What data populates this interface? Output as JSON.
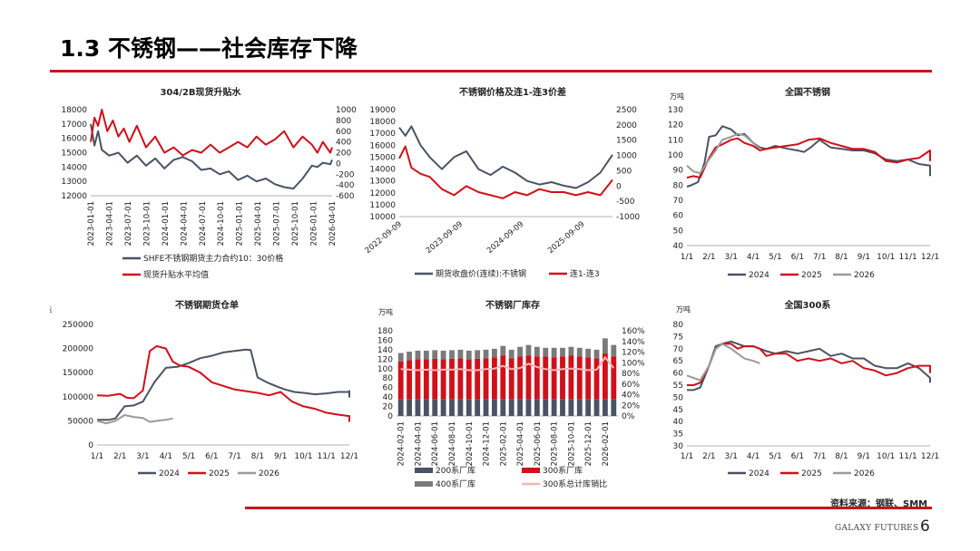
{
  "page": {
    "title": "1.3 不锈钢——社会库存下降",
    "source": "资料来源：钢联、SMM",
    "footer_brand": "GALAXY FUTURES",
    "page_number": "6"
  },
  "colors": {
    "red": "#d0101a",
    "gray": "#4a5363",
    "lightgray": "#9a9a9a",
    "pink": "#f4b6b8",
    "darkgray": "#7a7a7a"
  },
  "chart_data": [
    {
      "id": "c1",
      "type": "line",
      "title": "304/2B现货升贴水",
      "y_left": {
        "min": 12000,
        "max": 18000,
        "ticks": [
          "18000",
          "17000",
          "16000",
          "15000",
          "14000",
          "13000",
          "12000"
        ]
      },
      "y_right": {
        "min": -600,
        "max": 1000,
        "ticks": [
          "1000",
          "800",
          "600",
          "400",
          "200",
          "0",
          "-200",
          "-400",
          "-600"
        ]
      },
      "x_ticks": [
        "2023-01-01",
        "2023-04-01",
        "2023-07-01",
        "2023-10-01",
        "2024-01-01",
        "2024-04-01",
        "2024-07-01",
        "2024-10-01",
        "2025-01-01",
        "2025-04-01",
        "2025-07-01",
        "2025-10-01",
        "2026-01-01",
        "2026-04-01"
      ],
      "series": [
        {
          "name": "SHFE不锈钢期货主力合约10：30价格",
          "axis": "left",
          "color": "gray",
          "x": [
            0,
            0.2,
            0.4,
            0.6,
            1,
            1.5,
            2,
            2.5,
            3,
            3.5,
            4,
            4.5,
            5,
            5.5,
            6,
            6.5,
            7,
            7.5,
            8,
            8.5,
            9,
            9.5,
            10,
            10.5,
            11,
            11.5,
            12,
            12.3,
            12.6,
            13,
            13.1
          ],
          "values": [
            17000,
            15500,
            16500,
            15200,
            14800,
            15000,
            14300,
            14800,
            14100,
            14600,
            13900,
            14500,
            14700,
            14400,
            13800,
            13900,
            13500,
            13700,
            13100,
            13400,
            13000,
            13200,
            12800,
            12600,
            12500,
            13200,
            14100,
            14000,
            14300,
            14200,
            14500
          ]
        },
        {
          "name": "现货升贴水平均值",
          "axis": "right",
          "color": "red",
          "x": [
            0,
            0.2,
            0.4,
            0.6,
            0.9,
            1.2,
            1.5,
            1.8,
            2.1,
            2.5,
            3,
            3.5,
            4,
            4.5,
            5,
            5.5,
            6,
            6.5,
            7,
            7.5,
            8,
            8.5,
            9,
            9.5,
            10,
            10.5,
            11,
            11.5,
            12,
            12.3,
            12.6,
            13,
            13.1
          ],
          "values": [
            400,
            850,
            700,
            1000,
            600,
            800,
            500,
            650,
            400,
            700,
            300,
            500,
            200,
            300,
            150,
            250,
            200,
            350,
            200,
            300,
            400,
            300,
            500,
            350,
            450,
            600,
            300,
            500,
            350,
            200,
            400,
            200,
            300
          ]
        }
      ]
    },
    {
      "id": "c2",
      "type": "line",
      "title": "不锈钢价格及连1-连3价差",
      "y_left": {
        "min": 10000,
        "max": 19000,
        "ticks": [
          "19000",
          "18000",
          "17000",
          "16000",
          "15000",
          "14000",
          "13000",
          "12000",
          "11000",
          "10000"
        ]
      },
      "y_right": {
        "min": -1000,
        "max": 2500,
        "ticks": [
          "2500",
          "2000",
          "1500",
          "1000",
          "500",
          "0",
          "-500",
          "-1000"
        ]
      },
      "x_ticks": [
        "2022-09-09",
        "2023-09-09",
        "2024-09-09",
        "2025-09-09"
      ],
      "series": [
        {
          "name": "期货收盘价(连续):不锈钢",
          "axis": "left",
          "color": "gray",
          "x": [
            0,
            0.1,
            0.2,
            0.35,
            0.5,
            0.7,
            0.9,
            1.1,
            1.3,
            1.5,
            1.7,
            1.9,
            2.1,
            2.3,
            2.5,
            2.7,
            2.9,
            3.1,
            3.3,
            3.5
          ],
          "values": [
            17500,
            16800,
            17600,
            16000,
            15000,
            14000,
            15000,
            15500,
            14000,
            13500,
            14200,
            13700,
            13000,
            12700,
            12900,
            12600,
            12400,
            12900,
            13700,
            15200
          ]
        },
        {
          "name": "连1-连3",
          "axis": "right",
          "color": "red",
          "x": [
            0,
            0.1,
            0.2,
            0.35,
            0.5,
            0.7,
            0.9,
            1.1,
            1.3,
            1.5,
            1.7,
            1.9,
            2.1,
            2.3,
            2.5,
            2.7,
            2.9,
            3.1,
            3.3,
            3.5
          ],
          "values": [
            900,
            1300,
            600,
            400,
            300,
            -100,
            -300,
            0,
            -200,
            -300,
            -400,
            -200,
            -300,
            -100,
            -200,
            -200,
            -300,
            -200,
            -300,
            200
          ]
        }
      ]
    },
    {
      "id": "c3",
      "type": "line",
      "title": "全国不锈钢",
      "unit": "万吨",
      "y_left": {
        "min": 40,
        "max": 130,
        "ticks": [
          "130",
          "120",
          "110",
          "100",
          "90",
          "80",
          "70",
          "60",
          "50",
          "40"
        ]
      },
      "x_ticks": [
        "1/1",
        "2/1",
        "3/1",
        "4/1",
        "5/1",
        "6/1",
        "7/1",
        "8/1",
        "9/1",
        "10/1",
        "11/1",
        "12/1"
      ],
      "series": [
        {
          "name": "2024",
          "color": "gray",
          "x": [
            0,
            0.2,
            0.5,
            0.8,
            1.0,
            1.3,
            1.6,
            2.0,
            2.3,
            2.6,
            3.0,
            3.3,
            3.6,
            4.0,
            4.3,
            4.6,
            5.0,
            5.3,
            5.6,
            6.0,
            6.5,
            7.0,
            7.5,
            8.0,
            8.5,
            9.0,
            9.5,
            10.0,
            10.5,
            11.0,
            11.3,
            11.6,
            11.9
          ],
          "values": [
            79,
            80,
            82,
            95,
            112,
            113,
            119,
            117,
            113,
            114,
            108,
            105,
            104,
            106,
            105,
            104,
            103,
            102,
            105,
            110,
            105,
            104,
            103,
            103,
            101,
            97,
            96,
            97,
            94,
            93,
            90,
            88,
            86
          ]
        },
        {
          "name": "2025",
          "color": "red",
          "x": [
            0,
            0.3,
            0.6,
            1.0,
            1.3,
            1.6,
            2.0,
            2.3,
            2.6,
            3.0,
            3.3,
            3.6,
            4.0,
            4.5,
            5.0,
            5.5,
            6.0,
            6.5,
            7.0,
            7.5,
            8.0,
            8.5,
            9.0,
            9.5,
            10.0,
            10.5,
            11.0,
            11.3,
            11.6,
            11.9
          ],
          "values": [
            85,
            86,
            85,
            98,
            105,
            107,
            110,
            111,
            108,
            106,
            103,
            104,
            105,
            106,
            107,
            110,
            111,
            108,
            106,
            104,
            104,
            102,
            96,
            95,
            97,
            98,
            103,
            103,
            100,
            96
          ]
        },
        {
          "name": "2026",
          "color": "lightgray",
          "x": [
            0,
            0.3,
            0.6,
            1.0,
            1.3,
            1.6,
            2.0,
            2.3,
            2.6,
            3.0,
            3.3
          ],
          "values": [
            93,
            89,
            88,
            97,
            103,
            110,
            112,
            114,
            113,
            108,
            104
          ]
        }
      ]
    },
    {
      "id": "c4",
      "type": "line",
      "title": "不锈钢期货仓单",
      "unit": "吨",
      "y_left": {
        "min": 0,
        "max": 250000,
        "ticks": [
          "250000",
          "200000",
          "150000",
          "100000",
          "50000",
          "0"
        ]
      },
      "x_ticks": [
        "1/1",
        "2/1",
        "3/1",
        "4/1",
        "5/1",
        "6/1",
        "7/1",
        "8/1",
        "9/1",
        "10/1",
        "11/1",
        "12/1"
      ],
      "series": [
        {
          "name": "2024",
          "color": "gray",
          "x": [
            0,
            0.5,
            0.8,
            1.2,
            1.6,
            2.0,
            2.5,
            3.0,
            3.5,
            4.0,
            4.5,
            5.0,
            5.5,
            6.0,
            6.5,
            6.7,
            7.0,
            7.4,
            7.8,
            8.2,
            8.6,
            9.0,
            9.5,
            10.0,
            10.5,
            11.0,
            11.3,
            11.5,
            11.8,
            12.0
          ],
          "values": [
            52000,
            52000,
            55000,
            80000,
            82000,
            90000,
            130000,
            160000,
            162000,
            170000,
            180000,
            185000,
            192000,
            195000,
            198000,
            197000,
            140000,
            130000,
            122000,
            115000,
            110000,
            108000,
            105000,
            107000,
            110000,
            110000,
            108000,
            112000,
            100000,
            102000
          ]
        },
        {
          "name": "2025",
          "color": "red",
          "x": [
            0,
            0.5,
            1.0,
            1.3,
            1.6,
            2.0,
            2.3,
            2.6,
            3.0,
            3.3,
            3.6,
            4.0,
            4.5,
            5.0,
            6.0,
            7.0,
            7.5,
            8.0,
            8.5,
            9.0,
            9.5,
            10.0,
            10.5,
            11.0,
            11.5,
            12.0
          ],
          "values": [
            103000,
            102000,
            106000,
            98000,
            97000,
            113000,
            195000,
            205000,
            200000,
            173000,
            165000,
            162000,
            150000,
            130000,
            115000,
            108000,
            103000,
            110000,
            90000,
            80000,
            75000,
            67000,
            63000,
            60000,
            50000,
            48000
          ]
        },
        {
          "name": "2026",
          "color": "lightgray",
          "x": [
            0,
            0.4,
            0.8,
            1.2,
            1.6,
            2.0,
            2.3,
            2.6,
            3.0,
            3.3
          ],
          "values": [
            50000,
            45000,
            50000,
            62000,
            58000,
            56000,
            48000,
            50000,
            52000,
            55000
          ]
        }
      ]
    },
    {
      "id": "c5",
      "type": "bar",
      "title": "不锈钢厂库存",
      "unit": "万吨",
      "y_left": {
        "min": 0,
        "max": 180,
        "ticks": [
          "180",
          "160",
          "140",
          "120",
          "100",
          "80",
          "60",
          "40",
          "20",
          "0"
        ]
      },
      "y_right": {
        "min": 0,
        "max": 160,
        "ticks": [
          "160%",
          "140%",
          "120%",
          "100%",
          "80%",
          "60%",
          "40%",
          "20%",
          "0%"
        ]
      },
      "x_ticks": [
        "2024-02-01",
        "2024-04-01",
        "2024-06-01",
        "2024-08-01",
        "2024-10-01",
        "2024-12-01",
        "2025-02-01",
        "2025-04-01",
        "2025-06-01",
        "2025-08-01",
        "2025-10-01",
        "2025-12-01",
        "2026-02-01"
      ],
      "categories_count": 26,
      "series": [
        {
          "name": "200系厂库",
          "color": "gray",
          "values": [
            35,
            36,
            36,
            36,
            36,
            36,
            36,
            36,
            36,
            36,
            36,
            36,
            36,
            36,
            36,
            36,
            36,
            36,
            36,
            36,
            36,
            36,
            36,
            36,
            36,
            36
          ]
        },
        {
          "name": "300系厂库",
          "color": "red",
          "values": [
            80,
            82,
            84,
            84,
            85,
            84,
            85,
            86,
            84,
            85,
            86,
            88,
            92,
            86,
            90,
            92,
            90,
            90,
            88,
            90,
            92,
            90,
            88,
            86,
            96,
            90
          ]
        },
        {
          "name": "400系厂库",
          "color": "darkgray",
          "values": [
            18,
            18,
            18,
            18,
            18,
            18,
            18,
            18,
            18,
            18,
            18,
            18,
            20,
            18,
            20,
            22,
            20,
            18,
            20,
            18,
            18,
            18,
            18,
            18,
            32,
            24
          ]
        },
        {
          "name": "300系总计库销比",
          "color": "pink",
          "axis": "right",
          "values": [
            88,
            87,
            86,
            87,
            86,
            87,
            87,
            88,
            86,
            86,
            88,
            89,
            94,
            88,
            90,
            98,
            92,
            88,
            86,
            88,
            89,
            88,
            86,
            87,
            110,
            90
          ]
        }
      ]
    },
    {
      "id": "c6",
      "type": "line",
      "title": "全国300系",
      "unit": "万吨",
      "y_left": {
        "min": 30,
        "max": 80,
        "ticks": [
          "80",
          "75",
          "70",
          "65",
          "60",
          "55",
          "50",
          "45",
          "40",
          "35",
          "30"
        ]
      },
      "x_ticks": [
        "1/1",
        "2/1",
        "3/1",
        "4/1",
        "5/1",
        "6/1",
        "7/1",
        "8/1",
        "9/1",
        "10/1",
        "11/1",
        "12/1"
      ],
      "series": [
        {
          "name": "2024",
          "color": "gray",
          "x": [
            0,
            0.3,
            0.6,
            1.0,
            1.3,
            1.6,
            2.0,
            2.3,
            2.6,
            3.0,
            3.3,
            3.6,
            4.0,
            4.5,
            5.0,
            5.5,
            6.0,
            6.5,
            7.0,
            7.5,
            8.0,
            8.5,
            9.0,
            9.5,
            10.0,
            10.5,
            11.0,
            11.5,
            11.9
          ],
          "values": [
            53,
            53,
            54,
            63,
            71,
            72,
            73,
            72,
            71,
            71,
            70,
            69,
            68,
            69,
            68,
            69,
            70,
            67,
            68,
            66,
            66,
            63,
            62,
            62,
            64,
            62,
            58,
            58,
            56
          ]
        },
        {
          "name": "2025",
          "color": "red",
          "x": [
            0,
            0.3,
            0.6,
            1.0,
            1.3,
            1.6,
            2.0,
            2.3,
            2.6,
            3.0,
            3.3,
            3.6,
            4.0,
            4.5,
            5.0,
            5.5,
            6.0,
            6.5,
            7.0,
            7.5,
            8.0,
            8.5,
            9.0,
            9.5,
            10.0,
            10.5,
            11.0,
            11.5,
            11.9
          ],
          "values": [
            55,
            55,
            56,
            63,
            70,
            72,
            72,
            70,
            71,
            71,
            70,
            67,
            68,
            68,
            65,
            66,
            65,
            66,
            64,
            65,
            62,
            61,
            59,
            60,
            62,
            63,
            63,
            61,
            60
          ]
        },
        {
          "name": "2026",
          "color": "lightgray",
          "x": [
            0,
            0.3,
            0.6,
            1.0,
            1.3,
            1.6,
            2.0,
            2.3,
            2.6,
            3.0,
            3.3
          ],
          "values": [
            59,
            58,
            57,
            63,
            70,
            72,
            70,
            68,
            66,
            65,
            64
          ]
        }
      ]
    }
  ]
}
